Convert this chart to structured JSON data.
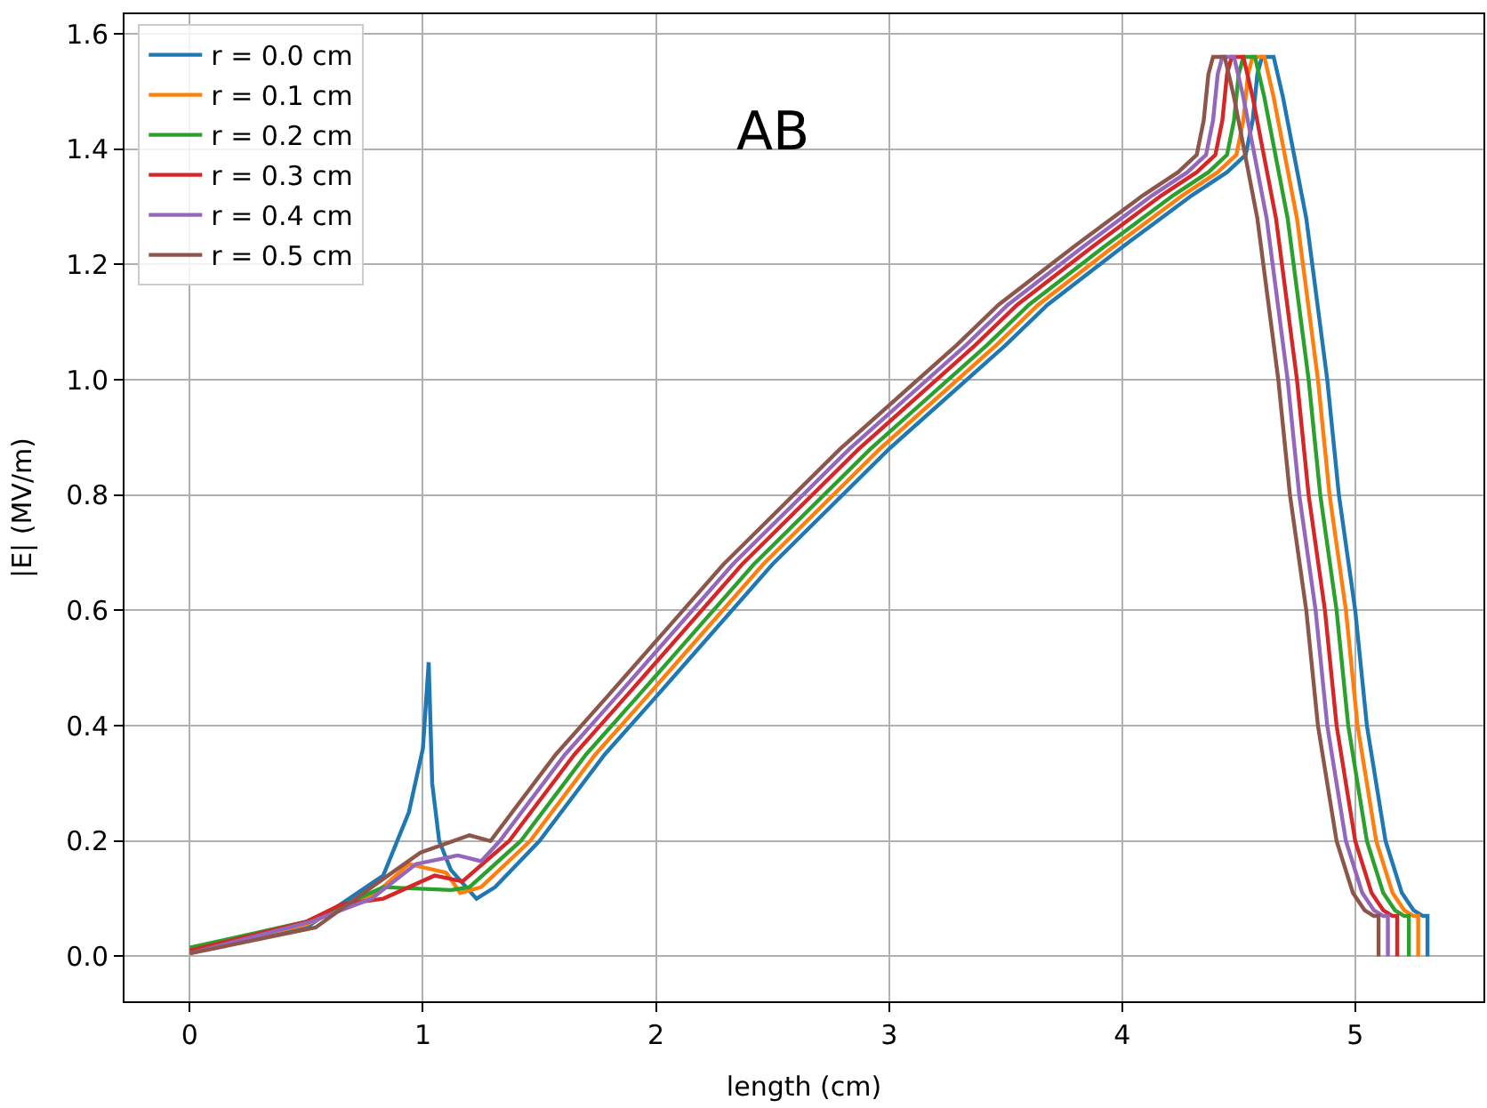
{
  "chart_data": {
    "type": "line",
    "xlabel": "length (cm)",
    "ylabel": "|E| (MV/m)",
    "annotations": [
      "AB"
    ],
    "xlim": [
      -0.28,
      5.55
    ],
    "xticks": [
      0,
      1,
      2,
      3,
      4,
      5
    ],
    "ylim": [
      -0.078,
      1.634
    ],
    "yticks": [
      {
        "value": 0,
        "label": "0.0"
      },
      {
        "value": 0.2,
        "label": "0.2"
      },
      {
        "value": 0.4,
        "label": "0.4"
      },
      {
        "value": 0.6,
        "label": "0.6"
      },
      {
        "value": 0.8,
        "label": "0.8"
      },
      {
        "value": 1.0,
        "label": "1.0"
      },
      {
        "value": 1.2,
        "label": "1.2"
      },
      {
        "value": 1.4,
        "label": "1.4"
      },
      {
        "value": 1.6,
        "label": "1.6"
      }
    ],
    "grid": true,
    "legend": "top left",
    "line_style": "solid",
    "series": [
      {
        "name": "r = 0.0 cm",
        "color": "#1f77b4",
        "x": [
          0,
          0.5,
          0.83,
          0.94,
          1.0,
          1.025,
          1.04,
          1.07,
          1.12,
          1.23,
          1.31,
          1.5,
          1.78,
          2,
          2.5,
          3,
          3.5,
          3.68,
          4,
          4.3,
          4.45,
          4.53,
          4.56,
          4.58,
          4.6,
          4.65,
          4.69,
          4.79,
          4.88,
          4.93,
          5.0,
          5.05,
          5.13,
          5.2,
          5.25,
          5.29,
          5.31,
          5.31
        ],
        "values": [
          0.01,
          0.05,
          0.14,
          0.25,
          0.36,
          0.51,
          0.3,
          0.2,
          0.15,
          0.1,
          0.12,
          0.2,
          0.35,
          0.45,
          0.68,
          0.88,
          1.06,
          1.13,
          1.23,
          1.32,
          1.36,
          1.39,
          1.45,
          1.53,
          1.56,
          1.56,
          1.49,
          1.28,
          1.0,
          0.8,
          0.6,
          0.4,
          0.2,
          0.11,
          0.08,
          0.07,
          0.07,
          0.0
        ]
      },
      {
        "name": "r = 0.1 cm",
        "color": "#ff7f0e",
        "x": [
          0,
          0.5,
          0.8,
          0.94,
          1.1,
          1.16,
          1.25,
          1.46,
          1.74,
          1.96,
          2.46,
          2.96,
          3.46,
          3.64,
          3.96,
          4.26,
          4.41,
          4.49,
          4.52,
          4.54,
          4.56,
          4.61,
          4.65,
          4.75,
          4.84,
          4.89,
          4.96,
          5.01,
          5.09,
          5.16,
          5.21,
          5.25,
          5.27,
          5.27
        ],
        "values": [
          0.01,
          0.055,
          0.11,
          0.16,
          0.145,
          0.11,
          0.12,
          0.2,
          0.35,
          0.45,
          0.68,
          0.88,
          1.06,
          1.13,
          1.23,
          1.32,
          1.36,
          1.39,
          1.45,
          1.53,
          1.56,
          1.56,
          1.49,
          1.28,
          1.0,
          0.8,
          0.6,
          0.4,
          0.2,
          0.11,
          0.08,
          0.07,
          0.07,
          0.0
        ]
      },
      {
        "name": "r = 0.2 cm",
        "color": "#2ca02c",
        "x": [
          0,
          0.5,
          0.83,
          1.12,
          1.2,
          1.42,
          1.7,
          1.92,
          2.42,
          2.92,
          3.42,
          3.6,
          3.92,
          4.22,
          4.37,
          4.45,
          4.48,
          4.5,
          4.52,
          4.57,
          4.61,
          4.71,
          4.8,
          4.85,
          4.92,
          4.97,
          5.05,
          5.12,
          5.17,
          5.21,
          5.23,
          5.23
        ],
        "values": [
          0.015,
          0.06,
          0.12,
          0.115,
          0.12,
          0.2,
          0.35,
          0.45,
          0.68,
          0.88,
          1.06,
          1.13,
          1.23,
          1.32,
          1.36,
          1.39,
          1.45,
          1.53,
          1.56,
          1.56,
          1.49,
          1.28,
          1.0,
          0.8,
          0.6,
          0.4,
          0.2,
          0.11,
          0.08,
          0.07,
          0.07,
          0.0
        ]
      },
      {
        "name": "r = 0.3 cm",
        "color": "#d62728",
        "x": [
          0,
          0.5,
          0.65,
          0.83,
          1.05,
          1.17,
          1.37,
          1.65,
          1.87,
          2.37,
          2.87,
          3.37,
          3.55,
          3.87,
          4.17,
          4.32,
          4.4,
          4.43,
          4.45,
          4.47,
          4.52,
          4.56,
          4.66,
          4.75,
          4.8,
          4.87,
          4.92,
          5.0,
          5.07,
          5.12,
          5.16,
          5.18,
          5.18
        ],
        "values": [
          0.01,
          0.06,
          0.09,
          0.1,
          0.14,
          0.13,
          0.2,
          0.35,
          0.45,
          0.68,
          0.88,
          1.06,
          1.13,
          1.23,
          1.32,
          1.36,
          1.39,
          1.45,
          1.53,
          1.56,
          1.56,
          1.49,
          1.28,
          1.0,
          0.8,
          0.6,
          0.4,
          0.2,
          0.11,
          0.08,
          0.07,
          0.07,
          0.0
        ]
      },
      {
        "name": "r = 0.4 cm",
        "color": "#9467bd",
        "x": [
          0,
          0.52,
          0.78,
          0.97,
          1.15,
          1.25,
          1.33,
          1.61,
          1.83,
          2.33,
          2.83,
          3.33,
          3.51,
          3.83,
          4.13,
          4.28,
          4.36,
          4.39,
          4.41,
          4.43,
          4.48,
          4.52,
          4.62,
          4.71,
          4.76,
          4.83,
          4.88,
          4.96,
          5.03,
          5.08,
          5.12,
          5.14,
          5.14
        ],
        "values": [
          0.005,
          0.06,
          0.1,
          0.16,
          0.175,
          0.165,
          0.2,
          0.35,
          0.45,
          0.68,
          0.88,
          1.06,
          1.13,
          1.23,
          1.32,
          1.36,
          1.39,
          1.45,
          1.53,
          1.56,
          1.56,
          1.49,
          1.28,
          1.0,
          0.8,
          0.6,
          0.4,
          0.2,
          0.11,
          0.08,
          0.07,
          0.07,
          0.0
        ]
      },
      {
        "name": "r = 0.5 cm",
        "color": "#8c564b",
        "x": [
          0,
          0.54,
          0.78,
          0.99,
          1.2,
          1.29,
          1.57,
          1.79,
          2.29,
          2.79,
          3.29,
          3.47,
          3.79,
          4.09,
          4.24,
          4.32,
          4.35,
          4.37,
          4.39,
          4.44,
          4.48,
          4.58,
          4.67,
          4.72,
          4.79,
          4.84,
          4.92,
          4.99,
          5.04,
          5.08,
          5.1,
          5.1
        ],
        "values": [
          0.005,
          0.05,
          0.12,
          0.18,
          0.21,
          0.2,
          0.35,
          0.45,
          0.68,
          0.88,
          1.06,
          1.13,
          1.23,
          1.32,
          1.36,
          1.39,
          1.45,
          1.53,
          1.56,
          1.56,
          1.49,
          1.28,
          1.0,
          0.8,
          0.6,
          0.4,
          0.2,
          0.11,
          0.08,
          0.07,
          0.07,
          0.0
        ]
      }
    ]
  }
}
